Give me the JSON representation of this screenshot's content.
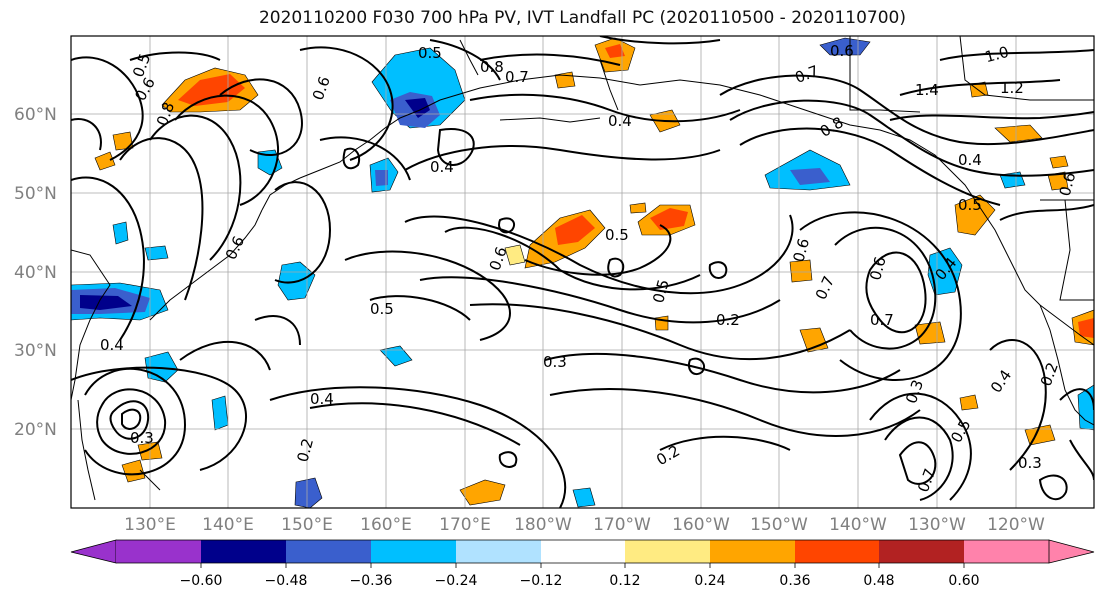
{
  "title": "2020110200 F030 700 hPa PV, IVT Landfall PC (2020110500 - 2020110700)",
  "lat_labels": [
    "60°N",
    "50°N",
    "40°N",
    "30°N",
    "20°N"
  ],
  "lat_values": [
    60,
    50,
    40,
    30,
    20
  ],
  "lon_labels": [
    "130°E",
    "140°E",
    "150°E",
    "160°E",
    "170°E",
    "180°W",
    "170°W",
    "160°W",
    "150°W",
    "140°W",
    "130°W",
    "120°W"
  ],
  "colorbar": {
    "ticks": [
      "−0.60",
      "−0.48",
      "−0.36",
      "−0.24",
      "−0.12",
      "0.12",
      "0.24",
      "0.36",
      "0.48",
      "0.60"
    ],
    "colors": [
      "#9932cc",
      "#00008b",
      "#3a5fcd",
      "#00bfff",
      "#b0e2ff",
      "#ffffff",
      "#ffeb82",
      "#ffa500",
      "#ff4500",
      "#b22222",
      "#ff82ab"
    ]
  },
  "contour_labels": [
    "0.5",
    "0.6",
    "0.8",
    "0.7",
    "0.6",
    "0.5",
    "0.8",
    "0.7",
    "0.6",
    "1.0",
    "1.4",
    "1.2",
    "0.4",
    "0.4",
    "0.8",
    "0.6",
    "0.4",
    "0.5",
    "0.6",
    "0.5",
    "0.6",
    "0.5",
    "0.5",
    "0.6",
    "0.7",
    "0.6",
    "0.7",
    "0.4",
    "0.2",
    "0.3",
    "0.4",
    "0.2",
    "0.3",
    "0.5",
    "0.4",
    "0.3",
    "0.2",
    "0.2",
    "0.7",
    "0.3",
    "0.4"
  ]
}
